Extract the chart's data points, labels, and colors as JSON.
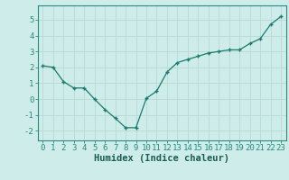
{
  "x": [
    0,
    1,
    2,
    3,
    4,
    5,
    6,
    7,
    8,
    9,
    10,
    11,
    12,
    13,
    14,
    15,
    16,
    17,
    18,
    19,
    20,
    21,
    22,
    23
  ],
  "y": [
    2.1,
    2.0,
    1.1,
    0.7,
    0.7,
    0.0,
    -0.65,
    -1.2,
    -1.8,
    -1.8,
    0.05,
    0.5,
    1.7,
    2.3,
    2.5,
    2.7,
    2.9,
    3.0,
    3.1,
    3.1,
    3.5,
    3.8,
    4.7,
    5.2
  ],
  "line_color": "#1a7a6e",
  "marker_color": "#1a7a6e",
  "bg_color": "#cdecea",
  "grid_color": "#b8d8d4",
  "axis_color": "#2a8a7e",
  "xlabel": "Humidex (Indice chaleur)",
  "ylim": [
    -2.6,
    5.9
  ],
  "xlim": [
    -0.5,
    23.5
  ],
  "yticks": [
    -2,
    -1,
    0,
    1,
    2,
    3,
    4,
    5
  ],
  "xticks": [
    0,
    1,
    2,
    3,
    4,
    5,
    6,
    7,
    8,
    9,
    10,
    11,
    12,
    13,
    14,
    15,
    16,
    17,
    18,
    19,
    20,
    21,
    22,
    23
  ],
  "font_color": "#1a5c52",
  "tick_font_size": 6.5,
  "label_font_size": 7.5
}
